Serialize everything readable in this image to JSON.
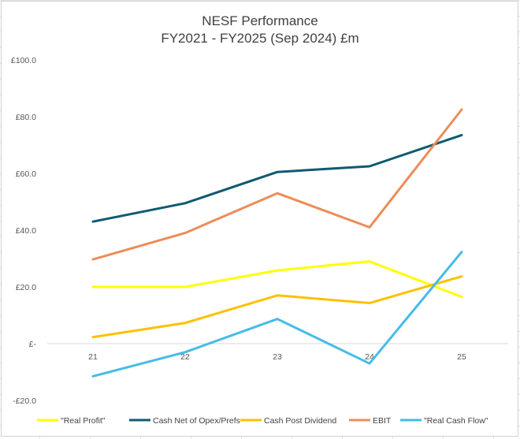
{
  "chart_data": {
    "type": "line",
    "title": "NESF Performance",
    "subtitle": "FY2021 - FY2025 (Sep 2024) £m",
    "xlabel": "",
    "ylabel": "",
    "categories": [
      "21",
      "22",
      "23",
      "24",
      "25"
    ],
    "ylim": [
      -20,
      100
    ],
    "yticks": [
      {
        "value": 100,
        "label": "£100.0"
      },
      {
        "value": 80,
        "label": "£80.0"
      },
      {
        "value": 60,
        "label": "£60.0"
      },
      {
        "value": 40,
        "label": "£40.0"
      },
      {
        "value": 20,
        "label": "£20.0"
      },
      {
        "value": 0,
        "label": "£-"
      },
      {
        "value": -20,
        "label": "-£20.0"
      }
    ],
    "grid": false,
    "legend_position": "bottom",
    "series": [
      {
        "name": "\"Real Profit\"",
        "color": "#ffff00",
        "values": [
          20.0,
          20.0,
          25.8,
          29.0,
          16.5
        ]
      },
      {
        "name": "Cash Net of Opex/Prefs",
        "color": "#0e5a72",
        "values": [
          43.0,
          49.5,
          60.5,
          62.5,
          73.5
        ]
      },
      {
        "name": "Cash Post Dividend",
        "color": "#ffc000",
        "values": [
          2.3,
          7.3,
          17.0,
          14.3,
          23.7
        ]
      },
      {
        "name": "EBIT",
        "color": "#ed8c58",
        "values": [
          29.7,
          39.0,
          53.0,
          41.0,
          82.5
        ]
      },
      {
        "name": "\"Real Cash Flow\"",
        "color": "#45bce7",
        "values": [
          -11.5,
          -3.0,
          8.7,
          -7.0,
          32.3
        ]
      }
    ]
  }
}
